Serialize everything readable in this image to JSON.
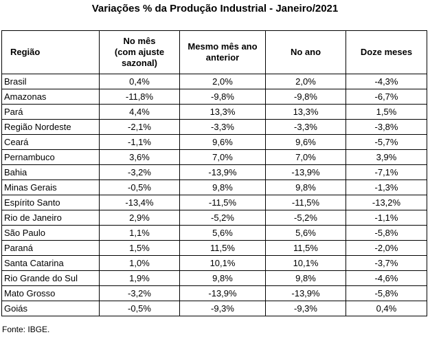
{
  "title": "Variações % da Produção Industrial - Janeiro/2021",
  "headers": {
    "region": "Região",
    "month_line1": "No mês",
    "month_line2": "(com ajuste",
    "month_line3": "sazonal)",
    "same_month_line1": "Mesmo mês ano",
    "same_month_line2": "anterior",
    "year": "No ano",
    "twelve": "Doze meses"
  },
  "rows": [
    {
      "region": "Brasil",
      "month": "0,4%",
      "same_month": "2,0%",
      "year": "2,0%",
      "twelve": "-4,3%"
    },
    {
      "region": "Amazonas",
      "month": "-11,8%",
      "same_month": "-9,8%",
      "year": "-9,8%",
      "twelve": "-6,7%"
    },
    {
      "region": "Pará",
      "month": "4,4%",
      "same_month": "13,3%",
      "year": "13,3%",
      "twelve": "1,5%"
    },
    {
      "region": "Região Nordeste",
      "month": "-2,1%",
      "same_month": "-3,3%",
      "year": "-3,3%",
      "twelve": "-3,8%"
    },
    {
      "region": "Ceará",
      "month": "-1,1%",
      "same_month": "9,6%",
      "year": "9,6%",
      "twelve": "-5,7%"
    },
    {
      "region": "Pernambuco",
      "month": "3,6%",
      "same_month": "7,0%",
      "year": "7,0%",
      "twelve": "3,9%"
    },
    {
      "region": "Bahia",
      "month": "-3,2%",
      "same_month": "-13,9%",
      "year": "-13,9%",
      "twelve": "-7,1%"
    },
    {
      "region": "Minas Gerais",
      "month": "-0,5%",
      "same_month": "9,8%",
      "year": "9,8%",
      "twelve": "-1,3%"
    },
    {
      "region": "Espírito Santo",
      "month": "-13,4%",
      "same_month": "-11,5%",
      "year": "-11,5%",
      "twelve": "-13,2%"
    },
    {
      "region": "Rio de Janeiro",
      "month": "2,9%",
      "same_month": "-5,2%",
      "year": "-5,2%",
      "twelve": "-1,1%"
    },
    {
      "region": "São Paulo",
      "month": "1,1%",
      "same_month": "5,6%",
      "year": "5,6%",
      "twelve": "-5,8%"
    },
    {
      "region": "Paraná",
      "month": "1,5%",
      "same_month": "11,5%",
      "year": "11,5%",
      "twelve": "-2,0%"
    },
    {
      "region": "Santa Catarina",
      "month": "1,0%",
      "same_month": "10,1%",
      "year": "10,1%",
      "twelve": "-3,7%"
    },
    {
      "region": "Rio Grande do Sul",
      "month": "1,9%",
      "same_month": "9,8%",
      "year": "9,8%",
      "twelve": "-4,6%"
    },
    {
      "region": "Mato Grosso",
      "month": "-3,2%",
      "same_month": "-13,9%",
      "year": "-13,9%",
      "twelve": "-5,8%"
    },
    {
      "region": "Goiás",
      "month": "-0,5%",
      "same_month": "-9,3%",
      "year": "-9,3%",
      "twelve": "0,4%"
    }
  ],
  "source": "Fonte: IBGE."
}
